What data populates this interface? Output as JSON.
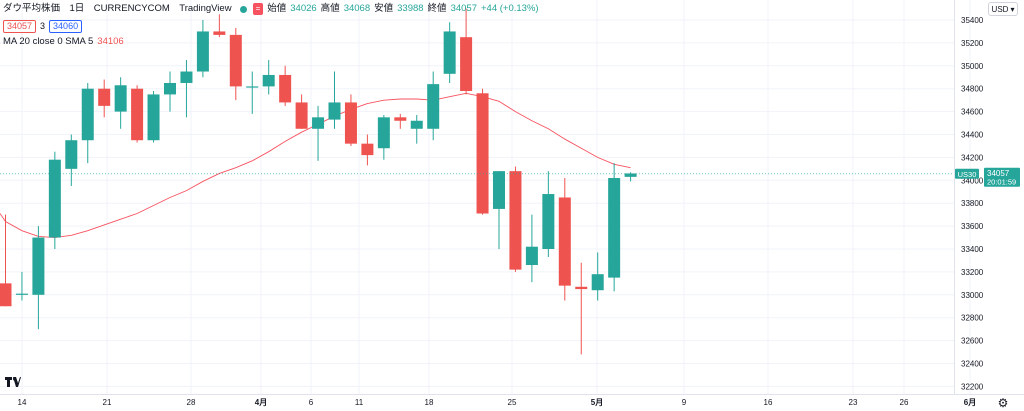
{
  "legend": {
    "title": "ダウ平均株価　1日　CURRENCYCOM　TradingView",
    "dot_symbol": "=",
    "open_label": "始値",
    "open": "34026",
    "high_label": "高値",
    "high": "34068",
    "low_label": "安値",
    "low": "33988",
    "close_label": "終値",
    "close": "34057",
    "change": "+44 (+0.13%)",
    "bid": "34057",
    "spread": "3",
    "ask": "34060",
    "ma_label": "MA 20 close 0 SMA 5",
    "ma_value": "34106"
  },
  "currency": "USD",
  "price_tag": {
    "symbol": "US30",
    "price": "34057",
    "countdown": "20:01:59"
  },
  "colors": {
    "up": "#26a69a",
    "down": "#ef5350",
    "ma": "#f7525f",
    "grid": "#f0f3fa",
    "axis_text": "#131722"
  },
  "chart_data": {
    "type": "candlestick",
    "title": "",
    "xlabel": "",
    "ylabel": "",
    "ylim": [
      32200,
      35500
    ],
    "y_ticks": [
      32200,
      32400,
      32600,
      32800,
      33000,
      33200,
      33400,
      33600,
      33800,
      34000,
      34200,
      34400,
      34600,
      34800,
      35000,
      35200,
      35400
    ],
    "x_ticks": [
      "14",
      "21",
      "28",
      "4月",
      "6",
      "11",
      "18",
      "25",
      "5月",
      "9",
      "16",
      "23",
      "26",
      "6月"
    ],
    "current_price": 34057,
    "candles": [
      {
        "o": 33100,
        "h": 33700,
        "l": 32900,
        "c": 32900
      },
      {
        "o": 33000,
        "h": 33200,
        "l": 32950,
        "c": 33010
      },
      {
        "o": 33000,
        "h": 33600,
        "l": 32700,
        "c": 33500
      },
      {
        "o": 33500,
        "h": 34250,
        "l": 33400,
        "c": 34180
      },
      {
        "o": 34100,
        "h": 34400,
        "l": 33950,
        "c": 34350
      },
      {
        "o": 34350,
        "h": 34850,
        "l": 34150,
        "c": 34800
      },
      {
        "o": 34800,
        "h": 34880,
        "l": 34550,
        "c": 34650
      },
      {
        "o": 34600,
        "h": 34900,
        "l": 34450,
        "c": 34830
      },
      {
        "o": 34800,
        "h": 34830,
        "l": 34330,
        "c": 34350
      },
      {
        "o": 34350,
        "h": 34780,
        "l": 34330,
        "c": 34750
      },
      {
        "o": 34750,
        "h": 34950,
        "l": 34600,
        "c": 34850
      },
      {
        "o": 34850,
        "h": 35050,
        "l": 34550,
        "c": 34950
      },
      {
        "o": 34950,
        "h": 35400,
        "l": 34900,
        "c": 35300
      },
      {
        "o": 35300,
        "h": 35450,
        "l": 35250,
        "c": 35270
      },
      {
        "o": 35270,
        "h": 35330,
        "l": 34700,
        "c": 34820
      },
      {
        "o": 34820,
        "h": 34950,
        "l": 34580,
        "c": 34820
      },
      {
        "o": 34820,
        "h": 35050,
        "l": 34750,
        "c": 34920
      },
      {
        "o": 34920,
        "h": 35000,
        "l": 34650,
        "c": 34680
      },
      {
        "o": 34680,
        "h": 34750,
        "l": 34450,
        "c": 34450
      },
      {
        "o": 34450,
        "h": 34650,
        "l": 34170,
        "c": 34550
      },
      {
        "o": 34530,
        "h": 34950,
        "l": 34450,
        "c": 34680
      },
      {
        "o": 34680,
        "h": 34750,
        "l": 34300,
        "c": 34320
      },
      {
        "o": 34320,
        "h": 34400,
        "l": 34130,
        "c": 34220
      },
      {
        "o": 34280,
        "h": 34570,
        "l": 34180,
        "c": 34550
      },
      {
        "o": 34550,
        "h": 34580,
        "l": 34450,
        "c": 34520
      },
      {
        "o": 34450,
        "h": 34570,
        "l": 34320,
        "c": 34520
      },
      {
        "o": 34450,
        "h": 34950,
        "l": 34350,
        "c": 34840
      },
      {
        "o": 34930,
        "h": 35380,
        "l": 34850,
        "c": 35300
      },
      {
        "o": 35250,
        "h": 35500,
        "l": 34750,
        "c": 34780
      },
      {
        "o": 34760,
        "h": 34800,
        "l": 33700,
        "c": 33710
      },
      {
        "o": 33750,
        "h": 34080,
        "l": 33400,
        "c": 34080
      },
      {
        "o": 34080,
        "h": 34120,
        "l": 33200,
        "c": 33220
      },
      {
        "o": 33260,
        "h": 33700,
        "l": 33110,
        "c": 33420
      },
      {
        "o": 33400,
        "h": 34080,
        "l": 33330,
        "c": 33880
      },
      {
        "o": 33850,
        "h": 34020,
        "l": 32950,
        "c": 33080
      },
      {
        "o": 33070,
        "h": 33280,
        "l": 32480,
        "c": 33050
      },
      {
        "o": 33040,
        "h": 33370,
        "l": 32950,
        "c": 33180
      },
      {
        "o": 33150,
        "h": 34150,
        "l": 33030,
        "c": 34020
      },
      {
        "o": 34030,
        "h": 34070,
        "l": 33990,
        "c": 34060
      }
    ],
    "ma_series": [
      {
        "i": -1,
        "v": 33710
      },
      {
        "i": 0,
        "v": 33640
      },
      {
        "i": 1,
        "v": 33560
      },
      {
        "i": 2,
        "v": 33510
      },
      {
        "i": 3,
        "v": 33500
      },
      {
        "i": 4,
        "v": 33520
      },
      {
        "i": 5,
        "v": 33560
      },
      {
        "i": 6,
        "v": 33610
      },
      {
        "i": 7,
        "v": 33660
      },
      {
        "i": 8,
        "v": 33710
      },
      {
        "i": 9,
        "v": 33780
      },
      {
        "i": 10,
        "v": 33850
      },
      {
        "i": 11,
        "v": 33910
      },
      {
        "i": 12,
        "v": 33990
      },
      {
        "i": 13,
        "v": 34060
      },
      {
        "i": 14,
        "v": 34110
      },
      {
        "i": 15,
        "v": 34170
      },
      {
        "i": 16,
        "v": 34250
      },
      {
        "i": 17,
        "v": 34340
      },
      {
        "i": 18,
        "v": 34420
      },
      {
        "i": 19,
        "v": 34490
      },
      {
        "i": 20,
        "v": 34560
      },
      {
        "i": 21,
        "v": 34620
      },
      {
        "i": 22,
        "v": 34670
      },
      {
        "i": 23,
        "v": 34700
      },
      {
        "i": 24,
        "v": 34710
      },
      {
        "i": 25,
        "v": 34710
      },
      {
        "i": 26,
        "v": 34700
      },
      {
        "i": 27,
        "v": 34730
      },
      {
        "i": 28,
        "v": 34760
      },
      {
        "i": 29,
        "v": 34730
      },
      {
        "i": 30,
        "v": 34690
      },
      {
        "i": 31,
        "v": 34600
      },
      {
        "i": 32,
        "v": 34520
      },
      {
        "i": 33,
        "v": 34450
      },
      {
        "i": 34,
        "v": 34360
      },
      {
        "i": 35,
        "v": 34280
      },
      {
        "i": 36,
        "v": 34200
      },
      {
        "i": 37,
        "v": 34140
      },
      {
        "i": 38,
        "v": 34110
      }
    ]
  }
}
